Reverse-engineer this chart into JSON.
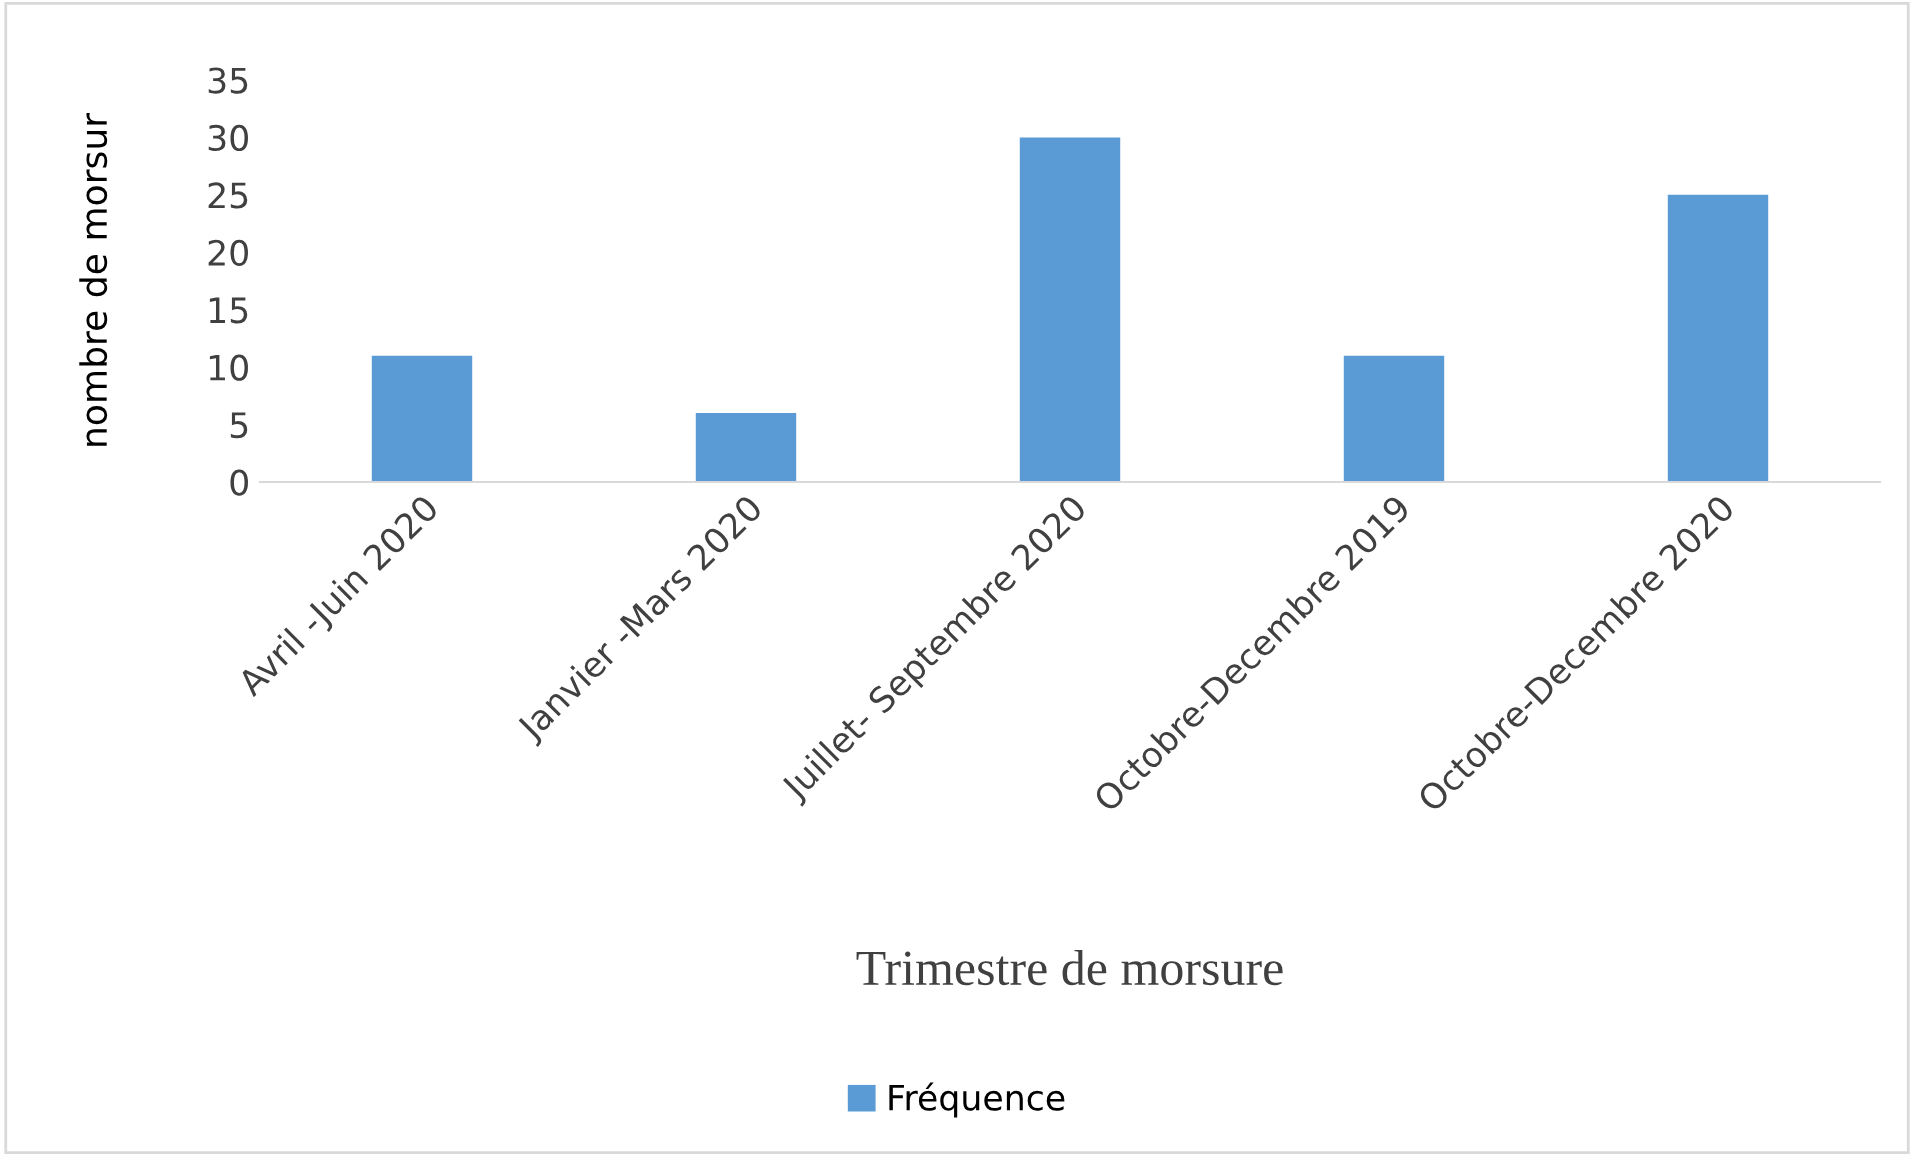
{
  "chart_data": {
    "type": "bar",
    "xlabel": "Trimestre de morsure",
    "ylabel": "nombre de morsur",
    "categories": [
      "Avril -Juin 2020",
      "Janvier -Mars 2020",
      "Juillet- Septembre 2020",
      "Octobre-Decembre 2019",
      "Octobre-Decembre 2020"
    ],
    "series": [
      {
        "name": "Fréquence",
        "color": "#5b9bd5",
        "values": [
          11,
          6,
          30,
          11,
          25
        ]
      }
    ],
    "ylim": [
      0,
      35
    ],
    "yticks": [
      0,
      5,
      10,
      15,
      20,
      25,
      30,
      35
    ],
    "grid": false,
    "legend": "bottom"
  }
}
